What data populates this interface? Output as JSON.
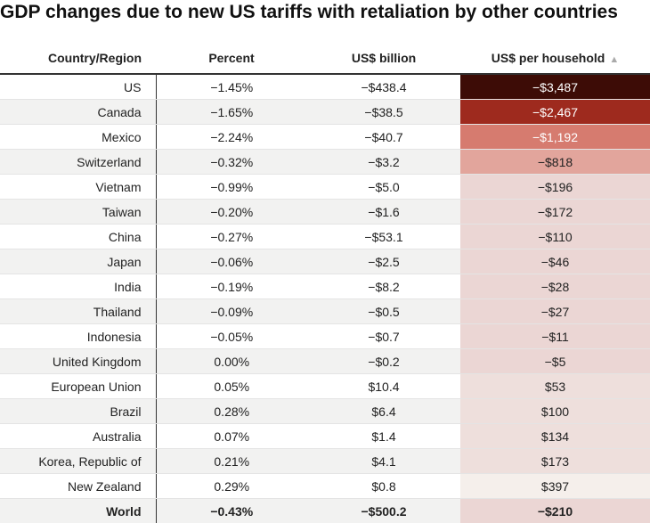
{
  "title": "GDP changes due to new US tariffs with retaliation by other countries",
  "columns": {
    "country": "Country/Region",
    "percent": "Percent",
    "usd_billion": "US$ billion",
    "per_household": "US$ per household",
    "sort_indicator": "▲"
  },
  "rows": [
    {
      "country": "US",
      "percent": "−1.45%",
      "usd_billion": "−$438.4",
      "per_household": "−$3,487",
      "value": -3487
    },
    {
      "country": "Canada",
      "percent": "−1.65%",
      "usd_billion": "−$38.5",
      "per_household": "−$2,467",
      "value": -2467
    },
    {
      "country": "Mexico",
      "percent": "−2.24%",
      "usd_billion": "−$40.7",
      "per_household": "−$1,192",
      "value": -1192
    },
    {
      "country": "Switzerland",
      "percent": "−0.32%",
      "usd_billion": "−$3.2",
      "per_household": "−$818",
      "value": -818
    },
    {
      "country": "Vietnam",
      "percent": "−0.99%",
      "usd_billion": "−$5.0",
      "per_household": "−$196",
      "value": -196
    },
    {
      "country": "Taiwan",
      "percent": "−0.20%",
      "usd_billion": "−$1.6",
      "per_household": "−$172",
      "value": -172
    },
    {
      "country": "China",
      "percent": "−0.27%",
      "usd_billion": "−$53.1",
      "per_household": "−$110",
      "value": -110
    },
    {
      "country": "Japan",
      "percent": "−0.06%",
      "usd_billion": "−$2.5",
      "per_household": "−$46",
      "value": -46
    },
    {
      "country": "India",
      "percent": "−0.19%",
      "usd_billion": "−$8.2",
      "per_household": "−$28",
      "value": -28
    },
    {
      "country": "Thailand",
      "percent": "−0.09%",
      "usd_billion": "−$0.5",
      "per_household": "−$27",
      "value": -27
    },
    {
      "country": "Indonesia",
      "percent": "−0.05%",
      "usd_billion": "−$0.7",
      "per_household": "−$11",
      "value": -11
    },
    {
      "country": "United Kingdom",
      "percent": "0.00%",
      "usd_billion": "−$0.2",
      "per_household": "−$5",
      "value": -5
    },
    {
      "country": "European Union",
      "percent": "0.05%",
      "usd_billion": "$10.4",
      "per_household": "$53",
      "value": 53
    },
    {
      "country": "Brazil",
      "percent": "0.28%",
      "usd_billion": "$6.4",
      "per_household": "$100",
      "value": 100
    },
    {
      "country": "Australia",
      "percent": "0.07%",
      "usd_billion": "$1.4",
      "per_household": "$134",
      "value": 134
    },
    {
      "country": "Korea, Republic of",
      "percent": "0.21%",
      "usd_billion": "$4.1",
      "per_household": "$173",
      "value": 173
    },
    {
      "country": "New Zealand",
      "percent": "0.29%",
      "usd_billion": "$0.8",
      "per_household": "$397",
      "value": 397
    }
  ],
  "total": {
    "country": "World",
    "percent": "−0.43%",
    "usd_billion": "−$500.2",
    "per_household": "−$210",
    "value": -210
  },
  "colors": {
    "dark": "#3d0c06",
    "strong": "#9e2a1e",
    "medium": "#d67b6f",
    "light": "#e2a59c",
    "pale": "#ebd6d4",
    "paler": "#eedfdc",
    "palest": "#f5efeb"
  },
  "chart_data": {
    "type": "table",
    "title": "GDP changes due to new US tariffs with retaliation by other countries",
    "columns": [
      "Country/Region",
      "Percent",
      "US$ billion",
      "US$ per household"
    ],
    "sorted_by": "US$ per household",
    "categories": [
      "US",
      "Canada",
      "Mexico",
      "Switzerland",
      "Vietnam",
      "Taiwan",
      "China",
      "Japan",
      "India",
      "Thailand",
      "Indonesia",
      "United Kingdom",
      "European Union",
      "Brazil",
      "Australia",
      "Korea, Republic of",
      "New Zealand",
      "World"
    ],
    "series": [
      {
        "name": "Percent",
        "values": [
          -1.45,
          -1.65,
          -2.24,
          -0.32,
          -0.99,
          -0.2,
          -0.27,
          -0.06,
          -0.19,
          -0.09,
          -0.05,
          0.0,
          0.05,
          0.28,
          0.07,
          0.21,
          0.29,
          -0.43
        ]
      },
      {
        "name": "US$ billion",
        "values": [
          -438.4,
          -38.5,
          -40.7,
          -3.2,
          -5.0,
          -1.6,
          -53.1,
          -2.5,
          -8.2,
          -0.5,
          -0.7,
          -0.2,
          10.4,
          6.4,
          1.4,
          4.1,
          0.8,
          -500.2
        ]
      },
      {
        "name": "US$ per household",
        "values": [
          -3487,
          -2467,
          -1192,
          -818,
          -196,
          -172,
          -110,
          -46,
          -28,
          -27,
          -11,
          -5,
          53,
          100,
          134,
          173,
          397,
          -210
        ]
      }
    ]
  }
}
